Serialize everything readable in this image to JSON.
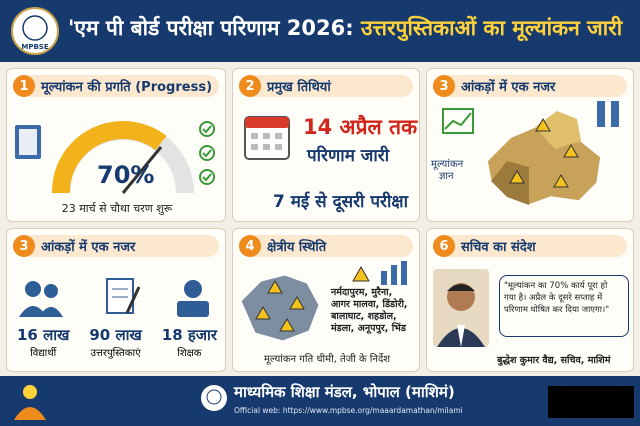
{
  "header": {
    "logo_text": "MPBSE",
    "title_part1": "'एम पी बोर्ड परीक्षा परिणाम 2026:",
    "title_part2": "उत्तरपुस्तिकाओं का मूल्यांकन जारी"
  },
  "panels": [
    {
      "number": "1",
      "title": "मूल्यांकन की प्रगति (Progress)",
      "gauge_label": "70%",
      "caption": "23 मार्च से चौथा चरण शुरू"
    },
    {
      "number": "2",
      "title": "प्रमुख तिथियां",
      "line1": "14 अप्रैल तक",
      "line2": "परिणाम जारी",
      "line3": "7 मई से दूसरी परीक्षा"
    },
    {
      "number": "3",
      "title": "आंकड़ों में एक नजर",
      "icon_label": [
        "मूल्यांकन",
        "ज्ञान"
      ]
    },
    {
      "number": "3",
      "title": "आंकड़ों में एक नजर",
      "stats": [
        {
          "value": "16 लाख",
          "label": "विद्यार्थी"
        },
        {
          "value": "90 लाख",
          "label": "उत्तरपुस्तिकाएं"
        },
        {
          "value": "18 हजार",
          "label": "शिक्षक"
        }
      ]
    },
    {
      "number": "4",
      "title": "क्षेत्रीय स्थिति",
      "districts": [
        "नर्मदापुरम, मुरैना,",
        "आगर मालवा, डिंडोरी,",
        "बालाघाट, शहडोल,",
        "मंडला, अनूपपुर, भिंड"
      ],
      "caption": "मूल्यांकन गति धीमी, तेजी के निर्देश"
    },
    {
      "number": "6",
      "title": "सचिव का संदेश",
      "quote": [
        "\"मूल्यांकन का 70% कार्य पूरा हो",
        "गया है। अप्रैल के दूसरे सप्ताह में",
        "परिणाम घोषित कर दिया जाएगा।\""
      ],
      "signature": "बुद्धेश कुमार वैद्य, सचिव, माशिमं"
    }
  ],
  "footer": {
    "org": "माध्यमिक शिक्षा मंडल, भोपाल (माशिमं)",
    "web": "Official web: https://www.mpbse.org/maaardamathan/milami"
  }
}
